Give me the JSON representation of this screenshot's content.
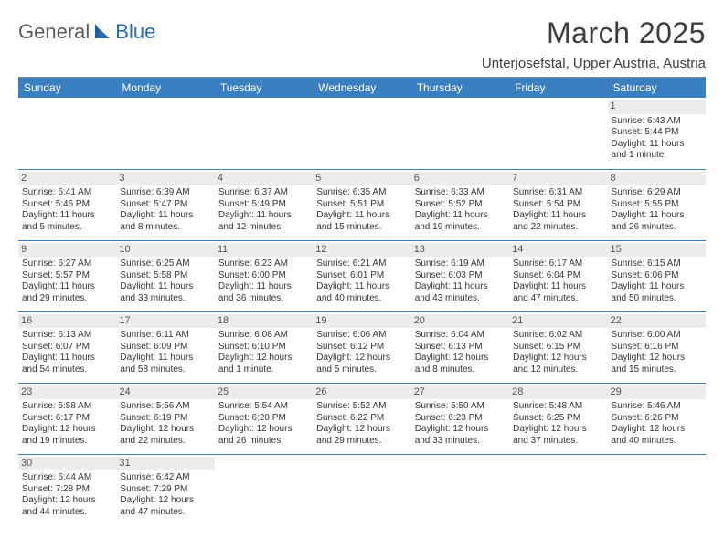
{
  "brand": {
    "part1": "General",
    "part2": "Blue"
  },
  "title": "March 2025",
  "location": "Unterjosefstal, Upper Austria, Austria",
  "colors": {
    "header_bg": "#3a7fc0",
    "header_fg": "#ffffff",
    "daynum_bg": "#ececec",
    "border": "#3a7fc0",
    "logo_gray": "#5b5b5b",
    "logo_blue": "#2a6bb3"
  },
  "daysOfWeek": [
    "Sunday",
    "Monday",
    "Tuesday",
    "Wednesday",
    "Thursday",
    "Friday",
    "Saturday"
  ],
  "weeks": [
    [
      null,
      null,
      null,
      null,
      null,
      null,
      {
        "num": "1",
        "sunrise": "Sunrise: 6:43 AM",
        "sunset": "Sunset: 5:44 PM",
        "daylight1": "Daylight: 11 hours",
        "daylight2": "and 1 minute."
      }
    ],
    [
      {
        "num": "2",
        "sunrise": "Sunrise: 6:41 AM",
        "sunset": "Sunset: 5:46 PM",
        "daylight1": "Daylight: 11 hours",
        "daylight2": "and 5 minutes."
      },
      {
        "num": "3",
        "sunrise": "Sunrise: 6:39 AM",
        "sunset": "Sunset: 5:47 PM",
        "daylight1": "Daylight: 11 hours",
        "daylight2": "and 8 minutes."
      },
      {
        "num": "4",
        "sunrise": "Sunrise: 6:37 AM",
        "sunset": "Sunset: 5:49 PM",
        "daylight1": "Daylight: 11 hours",
        "daylight2": "and 12 minutes."
      },
      {
        "num": "5",
        "sunrise": "Sunrise: 6:35 AM",
        "sunset": "Sunset: 5:51 PM",
        "daylight1": "Daylight: 11 hours",
        "daylight2": "and 15 minutes."
      },
      {
        "num": "6",
        "sunrise": "Sunrise: 6:33 AM",
        "sunset": "Sunset: 5:52 PM",
        "daylight1": "Daylight: 11 hours",
        "daylight2": "and 19 minutes."
      },
      {
        "num": "7",
        "sunrise": "Sunrise: 6:31 AM",
        "sunset": "Sunset: 5:54 PM",
        "daylight1": "Daylight: 11 hours",
        "daylight2": "and 22 minutes."
      },
      {
        "num": "8",
        "sunrise": "Sunrise: 6:29 AM",
        "sunset": "Sunset: 5:55 PM",
        "daylight1": "Daylight: 11 hours",
        "daylight2": "and 26 minutes."
      }
    ],
    [
      {
        "num": "9",
        "sunrise": "Sunrise: 6:27 AM",
        "sunset": "Sunset: 5:57 PM",
        "daylight1": "Daylight: 11 hours",
        "daylight2": "and 29 minutes."
      },
      {
        "num": "10",
        "sunrise": "Sunrise: 6:25 AM",
        "sunset": "Sunset: 5:58 PM",
        "daylight1": "Daylight: 11 hours",
        "daylight2": "and 33 minutes."
      },
      {
        "num": "11",
        "sunrise": "Sunrise: 6:23 AM",
        "sunset": "Sunset: 6:00 PM",
        "daylight1": "Daylight: 11 hours",
        "daylight2": "and 36 minutes."
      },
      {
        "num": "12",
        "sunrise": "Sunrise: 6:21 AM",
        "sunset": "Sunset: 6:01 PM",
        "daylight1": "Daylight: 11 hours",
        "daylight2": "and 40 minutes."
      },
      {
        "num": "13",
        "sunrise": "Sunrise: 6:19 AM",
        "sunset": "Sunset: 6:03 PM",
        "daylight1": "Daylight: 11 hours",
        "daylight2": "and 43 minutes."
      },
      {
        "num": "14",
        "sunrise": "Sunrise: 6:17 AM",
        "sunset": "Sunset: 6:04 PM",
        "daylight1": "Daylight: 11 hours",
        "daylight2": "and 47 minutes."
      },
      {
        "num": "15",
        "sunrise": "Sunrise: 6:15 AM",
        "sunset": "Sunset: 6:06 PM",
        "daylight1": "Daylight: 11 hours",
        "daylight2": "and 50 minutes."
      }
    ],
    [
      {
        "num": "16",
        "sunrise": "Sunrise: 6:13 AM",
        "sunset": "Sunset: 6:07 PM",
        "daylight1": "Daylight: 11 hours",
        "daylight2": "and 54 minutes."
      },
      {
        "num": "17",
        "sunrise": "Sunrise: 6:11 AM",
        "sunset": "Sunset: 6:09 PM",
        "daylight1": "Daylight: 11 hours",
        "daylight2": "and 58 minutes."
      },
      {
        "num": "18",
        "sunrise": "Sunrise: 6:08 AM",
        "sunset": "Sunset: 6:10 PM",
        "daylight1": "Daylight: 12 hours",
        "daylight2": "and 1 minute."
      },
      {
        "num": "19",
        "sunrise": "Sunrise: 6:06 AM",
        "sunset": "Sunset: 6:12 PM",
        "daylight1": "Daylight: 12 hours",
        "daylight2": "and 5 minutes."
      },
      {
        "num": "20",
        "sunrise": "Sunrise: 6:04 AM",
        "sunset": "Sunset: 6:13 PM",
        "daylight1": "Daylight: 12 hours",
        "daylight2": "and 8 minutes."
      },
      {
        "num": "21",
        "sunrise": "Sunrise: 6:02 AM",
        "sunset": "Sunset: 6:15 PM",
        "daylight1": "Daylight: 12 hours",
        "daylight2": "and 12 minutes."
      },
      {
        "num": "22",
        "sunrise": "Sunrise: 6:00 AM",
        "sunset": "Sunset: 6:16 PM",
        "daylight1": "Daylight: 12 hours",
        "daylight2": "and 15 minutes."
      }
    ],
    [
      {
        "num": "23",
        "sunrise": "Sunrise: 5:58 AM",
        "sunset": "Sunset: 6:17 PM",
        "daylight1": "Daylight: 12 hours",
        "daylight2": "and 19 minutes."
      },
      {
        "num": "24",
        "sunrise": "Sunrise: 5:56 AM",
        "sunset": "Sunset: 6:19 PM",
        "daylight1": "Daylight: 12 hours",
        "daylight2": "and 22 minutes."
      },
      {
        "num": "25",
        "sunrise": "Sunrise: 5:54 AM",
        "sunset": "Sunset: 6:20 PM",
        "daylight1": "Daylight: 12 hours",
        "daylight2": "and 26 minutes."
      },
      {
        "num": "26",
        "sunrise": "Sunrise: 5:52 AM",
        "sunset": "Sunset: 6:22 PM",
        "daylight1": "Daylight: 12 hours",
        "daylight2": "and 29 minutes."
      },
      {
        "num": "27",
        "sunrise": "Sunrise: 5:50 AM",
        "sunset": "Sunset: 6:23 PM",
        "daylight1": "Daylight: 12 hours",
        "daylight2": "and 33 minutes."
      },
      {
        "num": "28",
        "sunrise": "Sunrise: 5:48 AM",
        "sunset": "Sunset: 6:25 PM",
        "daylight1": "Daylight: 12 hours",
        "daylight2": "and 37 minutes."
      },
      {
        "num": "29",
        "sunrise": "Sunrise: 5:46 AM",
        "sunset": "Sunset: 6:26 PM",
        "daylight1": "Daylight: 12 hours",
        "daylight2": "and 40 minutes."
      }
    ],
    [
      {
        "num": "30",
        "sunrise": "Sunrise: 6:44 AM",
        "sunset": "Sunset: 7:28 PM",
        "daylight1": "Daylight: 12 hours",
        "daylight2": "and 44 minutes."
      },
      {
        "num": "31",
        "sunrise": "Sunrise: 6:42 AM",
        "sunset": "Sunset: 7:29 PM",
        "daylight1": "Daylight: 12 hours",
        "daylight2": "and 47 minutes."
      },
      null,
      null,
      null,
      null,
      null
    ]
  ]
}
